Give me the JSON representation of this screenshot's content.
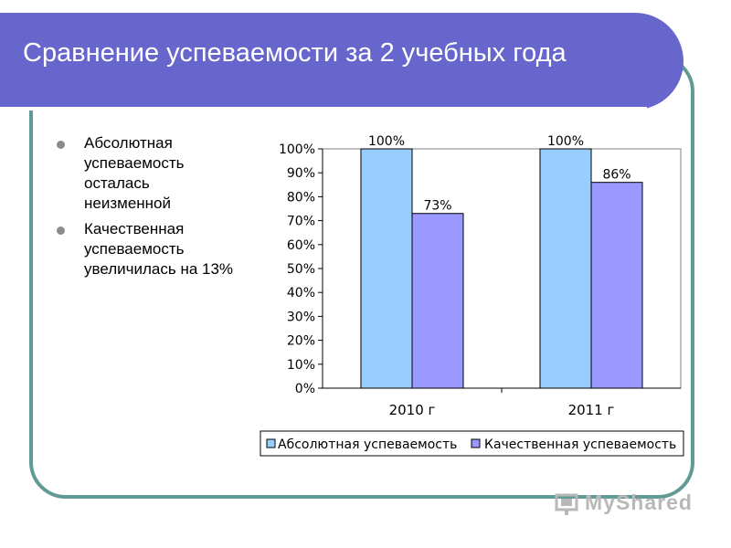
{
  "slide": {
    "title": "Сравнение успеваемости за 2 учебных года",
    "bullets": [
      "Абсолютная успеваемость осталась неизменной",
      "Качественная успеваемость увеличилась на 13%"
    ],
    "logo_text": "MyShared"
  },
  "colors": {
    "title_bar": "#6666cc",
    "frame": "#5f9a95",
    "series_1": "#99ccff",
    "series_2": "#9999ff"
  },
  "chart_data": {
    "type": "bar",
    "categories": [
      "2010 г",
      "2011 г"
    ],
    "series": [
      {
        "name": "Абсолютная успеваемость",
        "values": [
          100,
          100
        ],
        "labels": [
          "100%",
          "100%"
        ]
      },
      {
        "name": "Качественная успеваемость",
        "values": [
          73,
          86
        ],
        "labels": [
          "73%",
          "86%"
        ]
      }
    ],
    "y_ticks": [
      "0%",
      "10%",
      "20%",
      "30%",
      "40%",
      "50%",
      "60%",
      "70%",
      "80%",
      "90%",
      "100%"
    ],
    "ylim": [
      0,
      100
    ],
    "grid": false,
    "legend": "bottom"
  }
}
